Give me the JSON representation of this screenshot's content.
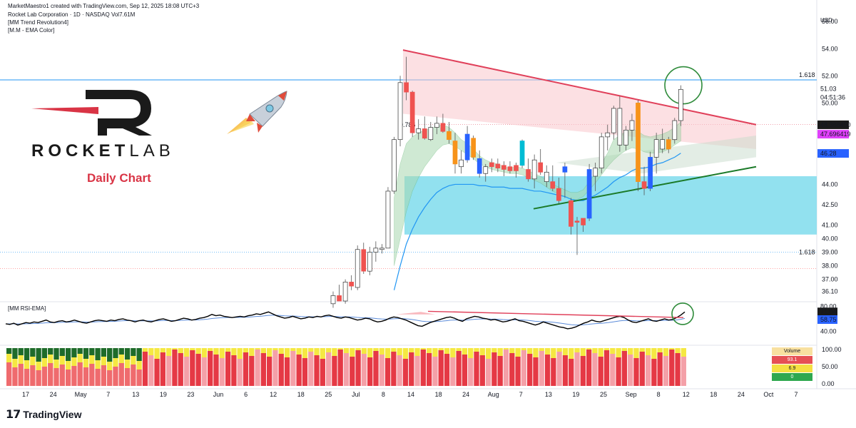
{
  "header": {
    "credit": "MarketMaestro1 created with TradingView.com, Sep 12, 2025 18:08 UTC+3",
    "symbol_line": "Rocket Lab Corporation · 1D · NASDAQ  Vol7.61M",
    "indicator_1": "[MM Trend Revolution4]",
    "indicator_2": "[M.M - EMA Color]"
  },
  "currency": "USD",
  "brand": {
    "bold": "ROCKET",
    "light": "LAB"
  },
  "annotation": "Daily Chart",
  "fib_labels": {
    "upper": "1.618",
    "lower": "1.618",
    "mid": "0.786"
  },
  "rsi_title": "[MM RSI-EMA]",
  "volume_table": {
    "header": "Volume",
    "rows": [
      "93.1",
      "6.9",
      "0"
    ]
  },
  "footer_logo": "TradingView",
  "colors": {
    "up": "#ffffff",
    "down": "#ef5350",
    "orange": "#f7931a",
    "blue": "#2962ff",
    "cyan": "#00bcd4",
    "trendline": "#e0405a",
    "support": "#1b7a28",
    "zone": "#7fdcec",
    "rsi": "#000000",
    "rsi_ema": "#5b8bd9"
  },
  "chart_data": {
    "type": "candlestick",
    "price_axis": {
      "ticks": [
        "56.00",
        "54.00",
        "52.00",
        "50.00",
        "44.00",
        "42.50",
        "41.00",
        "40.00",
        "39.00",
        "38.00",
        "37.00",
        "36.10"
      ],
      "badges": [
        {
          "label": "51.03",
          "value": 51.03,
          "style": "plain"
        },
        {
          "label": "04:51:36",
          "value": 50.4,
          "style": "plain"
        },
        {
          "label": "48.388450",
          "value": 48.39,
          "style": "dark"
        },
        {
          "label": "47.696419",
          "value": 47.7,
          "style": "magenta"
        },
        {
          "label": "46.28",
          "value": 46.28,
          "style": "blue"
        }
      ]
    },
    "time_axis": [
      "17",
      "24",
      "May",
      "7",
      "13",
      "19",
      "23",
      "Jun",
      "6",
      "12",
      "18",
      "25",
      "Jul",
      "8",
      "14",
      "18",
      "24",
      "Aug",
      "7",
      "13",
      "19",
      "25",
      "Sep",
      "8",
      "12",
      "18",
      "24",
      "Oct",
      "7"
    ],
    "candles": [
      [
        35.2,
        36.1,
        34.9,
        35.8,
        "up"
      ],
      [
        35.8,
        36.6,
        35.5,
        35.4,
        "down"
      ],
      [
        35.4,
        37.0,
        35.2,
        36.8,
        "up"
      ],
      [
        36.8,
        37.3,
        36.2,
        36.5,
        "down"
      ],
      [
        36.4,
        39.5,
        36.2,
        39.2,
        "up"
      ],
      [
        39.2,
        39.7,
        37.4,
        37.6,
        "down"
      ],
      [
        37.6,
        39.4,
        37.3,
        39.0,
        "up"
      ],
      [
        39.0,
        39.8,
        38.3,
        39.3,
        "up"
      ],
      [
        39.2,
        39.6,
        38.9,
        39.3,
        "up"
      ],
      [
        39.3,
        43.8,
        39.3,
        43.5,
        "up"
      ],
      [
        43.5,
        47.5,
        43.3,
        47.3,
        "up"
      ],
      [
        47.3,
        52.0,
        46.8,
        51.5,
        "up"
      ],
      [
        51.5,
        53.4,
        50.2,
        50.8,
        "down"
      ],
      [
        50.8,
        50.9,
        47.5,
        47.8,
        "down"
      ],
      [
        47.8,
        48.8,
        47.3,
        48.1,
        "up"
      ],
      [
        48.1,
        49.0,
        47.3,
        47.4,
        "down"
      ],
      [
        47.3,
        48.6,
        47.2,
        48.2,
        "up"
      ],
      [
        48.2,
        49.0,
        47.7,
        48.5,
        "up"
      ],
      [
        48.5,
        49.2,
        47.8,
        47.9,
        "down"
      ],
      [
        47.9,
        48.6,
        47.0,
        47.3,
        "orange"
      ],
      [
        47.2,
        47.8,
        44.8,
        45.5,
        "orange"
      ],
      [
        45.3,
        46.5,
        44.8,
        45.8,
        "up"
      ],
      [
        45.8,
        48.3,
        45.6,
        47.7,
        "blue"
      ],
      [
        47.4,
        47.6,
        45.8,
        46.0,
        "orange"
      ],
      [
        45.9,
        46.5,
        44.5,
        44.8,
        "blue"
      ],
      [
        44.8,
        45.5,
        44.2,
        45.3,
        "up"
      ],
      [
        45.3,
        45.9,
        44.9,
        45.6,
        "down"
      ],
      [
        45.5,
        45.9,
        44.9,
        45.2,
        "down"
      ],
      [
        45.1,
        45.7,
        44.6,
        45.4,
        "down"
      ],
      [
        45.3,
        45.7,
        44.8,
        45.0,
        "down"
      ],
      [
        45.0,
        45.6,
        44.5,
        45.4,
        "down"
      ],
      [
        45.4,
        47.3,
        45.2,
        47.2,
        "cyan"
      ],
      [
        45.1,
        45.9,
        44.2,
        44.4,
        "down"
      ],
      [
        44.4,
        46.2,
        43.7,
        45.8,
        "up"
      ],
      [
        45.6,
        46.6,
        44.7,
        44.9,
        "down"
      ],
      [
        44.9,
        45.4,
        43.8,
        44.2,
        "up"
      ],
      [
        44.2,
        45.4,
        43.5,
        43.7,
        "down"
      ],
      [
        43.7,
        44.5,
        42.6,
        42.8,
        "down"
      ],
      [
        44.9,
        45.6,
        43.0,
        45.3,
        "blue"
      ],
      [
        42.8,
        43.0,
        40.3,
        40.9,
        "down"
      ],
      [
        41.2,
        41.6,
        38.8,
        41.3,
        "red"
      ],
      [
        41.0,
        41.5,
        40.5,
        41.5,
        "down"
      ],
      [
        41.5,
        45.5,
        41.3,
        45.1,
        "blue"
      ],
      [
        44.6,
        45.6,
        43.5,
        45.2,
        "up"
      ],
      [
        45.2,
        47.8,
        44.8,
        47.5,
        "up"
      ],
      [
        47.5,
        48.4,
        46.5,
        47.8,
        "up"
      ],
      [
        47.8,
        49.8,
        47.3,
        49.6,
        "up"
      ],
      [
        49.6,
        50.5,
        46.4,
        46.9,
        "up"
      ],
      [
        46.9,
        48.3,
        46.5,
        48.0,
        "up"
      ],
      [
        48.0,
        49.2,
        47.2,
        48.7,
        "up"
      ],
      [
        50.0,
        50.2,
        43.5,
        44.2,
        "orange"
      ],
      [
        44.2,
        45.3,
        43.2,
        43.7,
        "red"
      ],
      [
        43.7,
        46.4,
        43.5,
        46.0,
        "blue"
      ],
      [
        46.0,
        47.8,
        44.8,
        47.3,
        "up"
      ],
      [
        47.3,
        48.1,
        46.3,
        46.6,
        "up"
      ],
      [
        46.6,
        47.5,
        46.3,
        47.3,
        "orange"
      ],
      [
        47.3,
        48.9,
        47.0,
        48.7,
        "up"
      ],
      [
        48.7,
        51.3,
        48.3,
        51.0,
        "up"
      ]
    ],
    "ema_line": [
      null,
      null,
      null,
      null,
      null,
      null,
      null,
      null,
      null,
      null,
      36.2,
      38.0,
      39.6,
      40.7,
      41.6,
      42.3,
      42.9,
      43.4,
      43.7,
      43.9,
      44.0,
      44.0,
      44.0,
      44.0,
      43.9,
      43.9,
      43.8,
      43.8,
      43.8,
      43.7,
      43.7,
      43.7,
      43.6,
      43.5,
      43.5,
      43.4,
      43.3,
      43.2,
      43.1,
      42.9,
      42.8,
      42.8,
      43.0,
      43.2,
      43.5,
      43.8,
      44.2,
      44.5,
      44.7,
      45.0,
      45.2,
      45.2,
      45.3,
      45.5,
      45.6,
      45.8,
      46.0,
      46.3
    ],
    "trend_band_upper": [
      null,
      null,
      null,
      null,
      null,
      null,
      null,
      null,
      null,
      null,
      43.0,
      45.5,
      47.0,
      47.5,
      47.8,
      48.0,
      48.1,
      48.3,
      48.4,
      48.2,
      47.8,
      47.3,
      47.0,
      46.6,
      46.1,
      45.8,
      45.6,
      45.5,
      45.3,
      45.2,
      45.3,
      45.2,
      45.0,
      44.8,
      44.6,
      44.3,
      44.0,
      43.8,
      43.6,
      43.4,
      43.4,
      43.6,
      44.2,
      44.8,
      45.5,
      46.3,
      47.3,
      47.6,
      47.9,
      48.1,
      47.9,
      47.6,
      47.5,
      47.6,
      47.7,
      47.9,
      48.2,
      48.6
    ],
    "trend_band_lower": [
      null,
      null,
      null,
      null,
      null,
      null,
      null,
      null,
      null,
      null,
      38.0,
      40.0,
      42.0,
      43.5,
      44.5,
      45.3,
      45.9,
      46.5,
      46.9,
      47.0,
      46.8,
      46.5,
      46.2,
      45.9,
      45.5,
      45.3,
      45.1,
      45.0,
      44.9,
      44.8,
      44.8,
      44.7,
      44.5,
      44.3,
      44.1,
      43.8,
      43.5,
      43.3,
      43.1,
      42.9,
      42.9,
      43.1,
      43.6,
      44.1,
      44.7,
      45.3,
      45.8,
      46.2,
      46.5,
      46.7,
      46.6,
      46.4,
      46.3,
      46.3,
      46.4,
      46.6,
      46.9,
      47.2
    ],
    "resistance_line": {
      "from": [
        0,
        53.9
      ],
      "to": [
        1,
        48.4
      ]
    },
    "support_line": {
      "from": [
        0,
        41.8
      ],
      "to": [
        1,
        45.3
      ]
    },
    "zone": {
      "top": 44.6,
      "bottom": 40.3
    },
    "fib_1618_upper": 51.7,
    "fib_1618_lower": 39.0,
    "fib_0786": 48.4,
    "rsi_axis": [
      "71.04",
      "58.75",
      "40.00"
    ],
    "rsi_scale_ticks": [
      "80.00",
      "40.00"
    ],
    "rsi_values": [
      52,
      51,
      53,
      50,
      52,
      54,
      53,
      55,
      54,
      56,
      58,
      55,
      54,
      56,
      57,
      55,
      56,
      58,
      56,
      54,
      53,
      55,
      57,
      58,
      57,
      56,
      58,
      57,
      59,
      60,
      58,
      57,
      55,
      57,
      58,
      56,
      55,
      57,
      59,
      60,
      58,
      56,
      57,
      59,
      61,
      60,
      58,
      59,
      61,
      62,
      64,
      67,
      65,
      66,
      64,
      63,
      62,
      63,
      64,
      63,
      65,
      66,
      68,
      67,
      69,
      71,
      68,
      65,
      63,
      61,
      62,
      64,
      62,
      60,
      61,
      63,
      62,
      64,
      63,
      65,
      66,
      64,
      62,
      61,
      63,
      62,
      60,
      58,
      59,
      61,
      60,
      57,
      55,
      56,
      58,
      61,
      63,
      62,
      60,
      58,
      55,
      52,
      49,
      48,
      51,
      54,
      56,
      58,
      60,
      62,
      63,
      61,
      58,
      56,
      60,
      62,
      64,
      63,
      61,
      60,
      58,
      59,
      57,
      55,
      56,
      58,
      60,
      57,
      56,
      54,
      52,
      50,
      52,
      55,
      53,
      51,
      49,
      47,
      46,
      44,
      45,
      47,
      50,
      53,
      55,
      58,
      56,
      55,
      57,
      59,
      61,
      63,
      64,
      62,
      58,
      55,
      54,
      56,
      58,
      60,
      57,
      56,
      58,
      60,
      58,
      59,
      62,
      66,
      71
    ]
  }
}
